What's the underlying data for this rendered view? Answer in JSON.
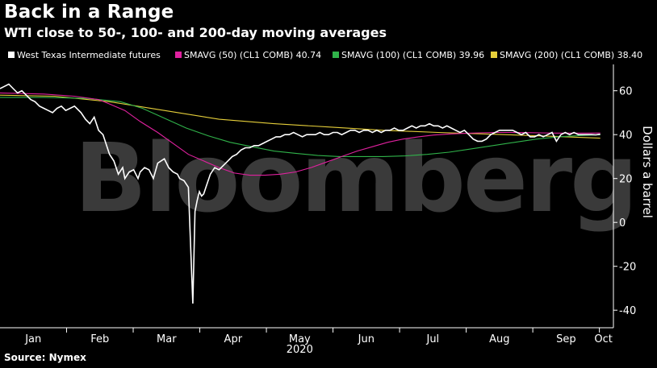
{
  "header": {
    "title": "Back in a Range",
    "subtitle": "WTI close to 50-, 100- and 200-day moving averages"
  },
  "footer": {
    "source": "Source: Nymex"
  },
  "watermark": "Bloomberg",
  "chart_data": {
    "type": "line",
    "xlabel": "2020",
    "ylabel": "Dollars a barrel",
    "ylim": [
      -48,
      72
    ],
    "yticks": [
      -40,
      -20,
      0,
      20,
      40,
      60
    ],
    "months": [
      "Jan",
      "Feb",
      "Mar",
      "Apr",
      "May",
      "Jun",
      "Jul",
      "Aug",
      "Sep",
      "Oct"
    ],
    "grid": false,
    "legend_position": "top",
    "series": [
      {
        "name": "West Texas Intermediate futures",
        "color": "#ffffff",
        "x": [
          0,
          2,
          4,
          6,
          8,
          10,
          12,
          14,
          16,
          18,
          20,
          22,
          24,
          26,
          28,
          30,
          32,
          34,
          35,
          37,
          39,
          41,
          43,
          45,
          47,
          49,
          50,
          52,
          54,
          56,
          57,
          59,
          61,
          63,
          64,
          66,
          68,
          70,
          72,
          75,
          77,
          79,
          81,
          82,
          84,
          86,
          88,
          89,
          90,
          91,
          92,
          93,
          94,
          96,
          98,
          100,
          102,
          104,
          106,
          108,
          110,
          112,
          114,
          116,
          118,
          120,
          122,
          124,
          126,
          128,
          130,
          132,
          134,
          136,
          138,
          140,
          142,
          144,
          146,
          148,
          150,
          152,
          154,
          156,
          158,
          160,
          162,
          164,
          166,
          168,
          170,
          172,
          174,
          176,
          178,
          180,
          182,
          184,
          186,
          188,
          190,
          192,
          194,
          196,
          198,
          200,
          202,
          204,
          206,
          208,
          210,
          212,
          214,
          216,
          218,
          220,
          222,
          224,
          226,
          228,
          230,
          232,
          234,
          236,
          238,
          240,
          242,
          244,
          246,
          248,
          250,
          252,
          254,
          256,
          258,
          260,
          262,
          264,
          266,
          268,
          270,
          272,
          274
        ],
        "values": [
          61,
          62,
          63,
          61,
          59,
          60,
          58,
          56,
          55,
          53,
          52,
          51,
          50,
          52,
          53,
          51,
          52,
          53,
          52,
          50,
          47,
          45,
          48,
          42,
          40,
          34,
          31,
          28,
          22,
          25,
          20,
          23,
          24,
          20,
          23,
          25,
          24,
          20,
          27,
          29,
          25,
          23,
          22,
          20,
          19,
          16,
          -37,
          5,
          10,
          14,
          12,
          13,
          16,
          22,
          25,
          24,
          26,
          28,
          30,
          31,
          33,
          34,
          34,
          35,
          35,
          36,
          37,
          38,
          39,
          39,
          40,
          40,
          41,
          40,
          39,
          40,
          40,
          40,
          41,
          40,
          40,
          41,
          41,
          40,
          41,
          42,
          42,
          41,
          42,
          42,
          41,
          42,
          41,
          42,
          42,
          43,
          42,
          42,
          43,
          44,
          43,
          44,
          44,
          45,
          44,
          44,
          43,
          44,
          43,
          42,
          41,
          42,
          40,
          38,
          37,
          37,
          38,
          40,
          41,
          42,
          42,
          42,
          42,
          41,
          40,
          41,
          39,
          39,
          40,
          39,
          40,
          41,
          37,
          40,
          41,
          40,
          41,
          40,
          40,
          40,
          40,
          39.9,
          40.2
        ],
        "last": null
      },
      {
        "name": "SMAVG (50) (CL1 COMB)",
        "label": "SMAVG (50) (CL1 COMB) 40.74",
        "color": "#e0219f",
        "x": [
          0,
          20,
          34,
          45,
          50,
          57,
          64,
          72,
          79,
          86,
          93,
          100,
          107,
          114,
          121,
          128,
          135,
          142,
          149,
          156,
          163,
          170,
          177,
          184,
          191,
          198,
          205,
          212,
          219,
          226,
          233,
          240,
          247,
          254,
          261,
          268,
          274
        ],
        "values": [
          59,
          58.5,
          57.5,
          56,
          54,
          51,
          46,
          41,
          36,
          31,
          28,
          25,
          22.5,
          21.5,
          21.5,
          22,
          23,
          25,
          27.5,
          30,
          32.5,
          34.5,
          36.5,
          38,
          39,
          39.8,
          40.3,
          40.6,
          40.8,
          41,
          41,
          40.9,
          40.8,
          40.7,
          40.7,
          40.7,
          40.74
        ]
      },
      {
        "name": "SMAVG (100) (CL1 COMB)",
        "label": "SMAVG (100) (CL1 COMB) 39.96",
        "color": "#30b34a",
        "x": [
          0,
          20,
          40,
          55,
          65,
          75,
          85,
          95,
          105,
          115,
          125,
          135,
          145,
          155,
          165,
          175,
          185,
          195,
          205,
          215,
          225,
          235,
          245,
          255,
          265,
          274
        ],
        "values": [
          57,
          57,
          56.5,
          55,
          52,
          47.5,
          43,
          39.5,
          36.5,
          34.5,
          32.5,
          31.5,
          30.5,
          30,
          30,
          30,
          30.3,
          31,
          32,
          33.5,
          35,
          36.5,
          38,
          39,
          39.6,
          39.96
        ]
      },
      {
        "name": "SMAVG (200) (CL1 COMB)",
        "label": "SMAVG (200) (CL1 COMB) 38.40",
        "color": "#e6cf3a",
        "x": [
          0,
          25,
          50,
          75,
          100,
          125,
          150,
          175,
          200,
          225,
          250,
          274
        ],
        "values": [
          58,
          57.5,
          55,
          51,
          47,
          45,
          43.5,
          42,
          41,
          40.2,
          39.3,
          38.4
        ]
      }
    ]
  }
}
